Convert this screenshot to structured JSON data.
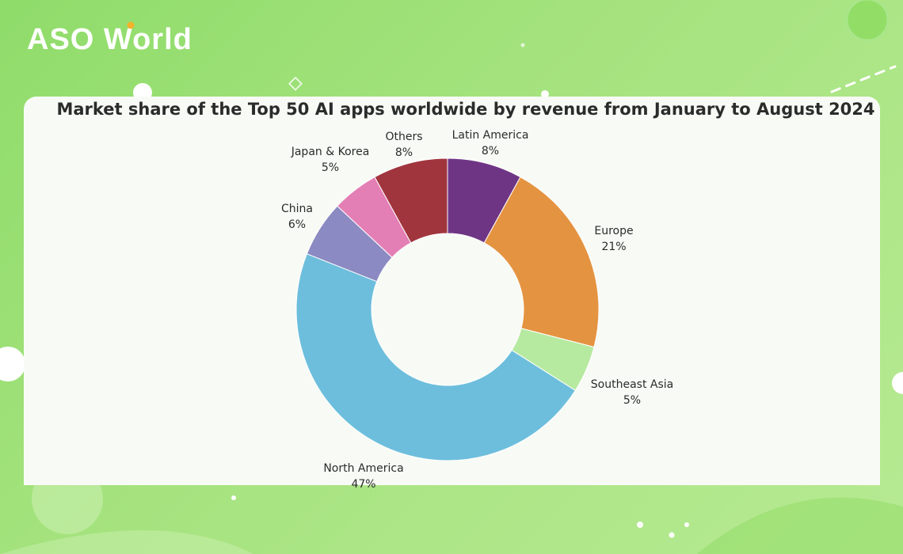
{
  "brand": {
    "logo_text": "ASO World"
  },
  "colors": {
    "background": "#9ddf76",
    "card": "#f8fbf5"
  },
  "chart_data": {
    "type": "pie",
    "variant": "donut",
    "title": "Market share of the Top 50 AI apps worldwide by revenue from January to August 2024",
    "unit": "%",
    "slices": [
      {
        "label": "Latin America",
        "value": 8,
        "display": "8%",
        "color": "#6f3585"
      },
      {
        "label": "Europe",
        "value": 21,
        "display": "21%",
        "color": "#e49341"
      },
      {
        "label": "Southeast Asia",
        "value": 5,
        "display": "5%",
        "color": "#b6eaa0"
      },
      {
        "label": "North America",
        "value": 47,
        "display": "47%",
        "color": "#6dbedc"
      },
      {
        "label": "China",
        "value": 6,
        "display": "6%",
        "color": "#8b8ac2"
      },
      {
        "label": "Japan & Korea",
        "value": 5,
        "display": "5%",
        "color": "#e37fb4"
      },
      {
        "label": "Others",
        "value": 8,
        "display": "8%",
        "color": "#a1353e"
      }
    ]
  }
}
